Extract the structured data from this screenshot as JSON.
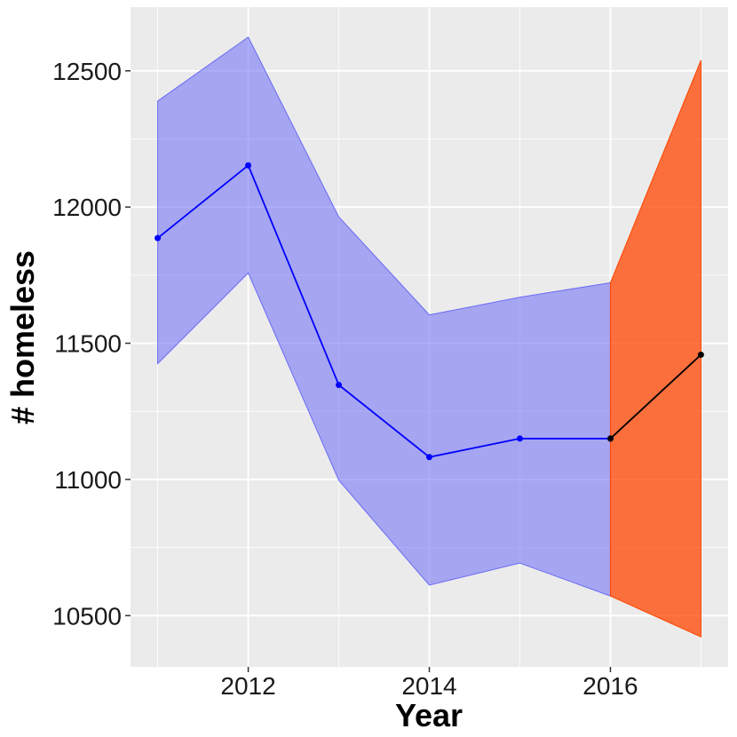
{
  "chart_data": {
    "type": "line",
    "xlabel": "Year",
    "ylabel": "# homeless",
    "xlim": [
      2010.7,
      2017.3
    ],
    "xticks": [
      2012,
      2014,
      2016
    ],
    "ylim": [
      10312,
      12734
    ],
    "yticks": [
      10500,
      11000,
      11500,
      12000,
      12500
    ],
    "grid": true,
    "series": [
      {
        "color": "#0000ff",
        "band_color": "#6b6bf5",
        "x": [
          2011,
          2012,
          2013,
          2014,
          2015,
          2016
        ],
        "values": [
          11886,
          12153,
          11347,
          11082,
          11150,
          11150
        ],
        "lower": [
          11425,
          11758,
          10997,
          10612,
          10693,
          10572
        ],
        "upper": [
          12389,
          12624,
          11964,
          11604,
          11669,
          11722
        ]
      },
      {
        "color": "#000000",
        "band_color": "#ff4500",
        "x": [
          2016,
          2017
        ],
        "values": [
          11150,
          11458
        ],
        "lower": [
          10572,
          10422
        ],
        "upper": [
          11722,
          12539
        ]
      }
    ]
  }
}
